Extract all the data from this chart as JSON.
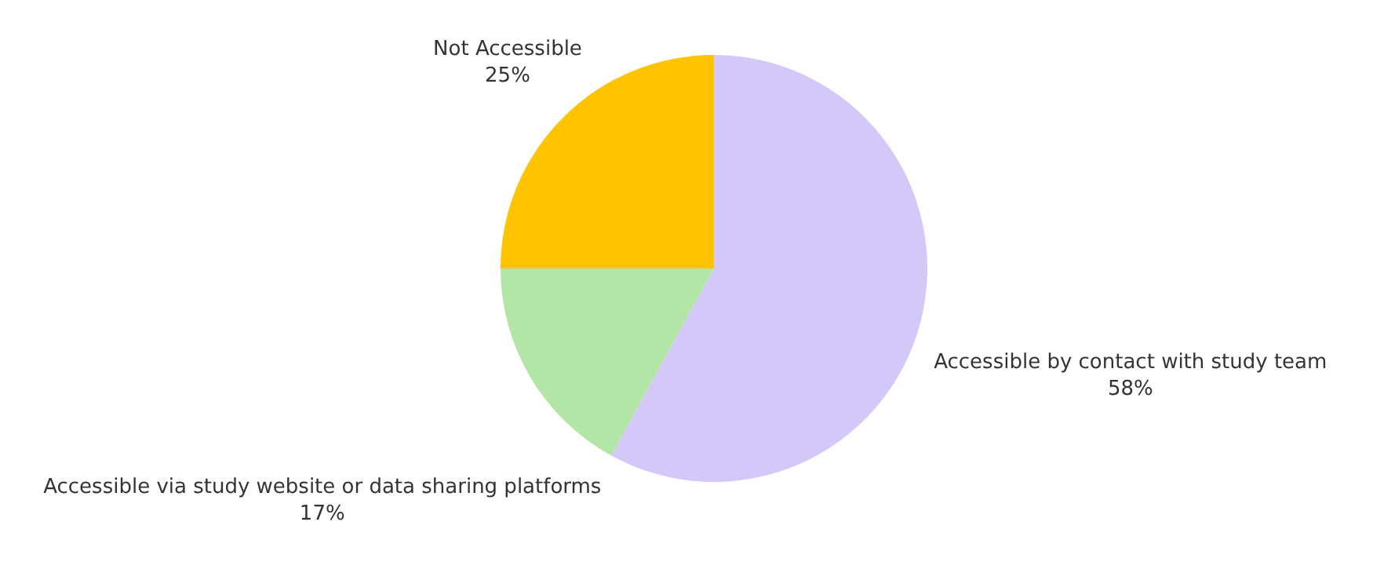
{
  "chart_data": {
    "type": "pie",
    "categories": [
      "Accessible by contact with study team",
      "Accessible via study website or data sharing platforms",
      "Not Accessible"
    ],
    "values": [
      58,
      17,
      25
    ],
    "colors": [
      "#d4c8f8",
      "#b3e5a6",
      "#ffc300"
    ],
    "value_labels": [
      "58%",
      "17%",
      "25%"
    ]
  }
}
